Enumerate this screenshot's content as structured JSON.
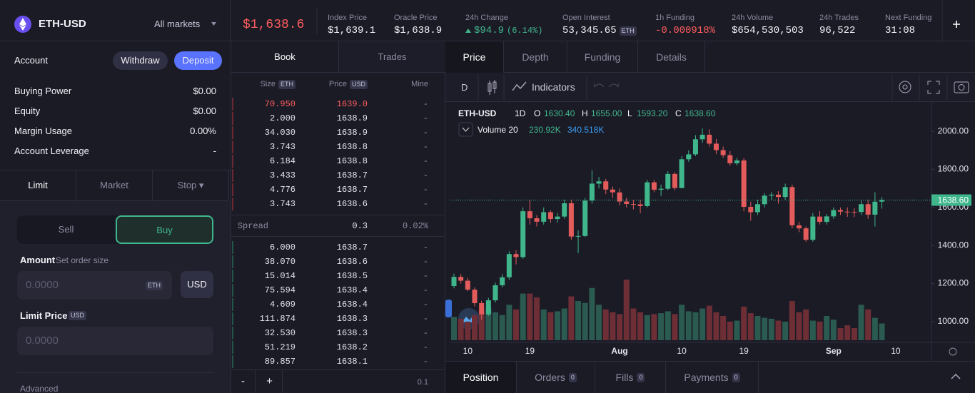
{
  "header": {
    "symbol": "ETH-USD",
    "markets": "All markets",
    "price": "$1,638.6",
    "stats": [
      {
        "label": "Index Price",
        "value": "$1,639.1"
      },
      {
        "label": "Oracle Price",
        "value": "$1,638.9"
      },
      {
        "label": "24h Change",
        "value": "$94.9",
        "extra": "(6.14%)",
        "color": "#3fb68b"
      },
      {
        "label": "Open Interest",
        "value": "53,345.65",
        "unit": "ETH"
      },
      {
        "label": "1h Funding",
        "value": "-0.000918%",
        "color": "#ff5d5d"
      },
      {
        "label": "24h Volume",
        "value": "$654,530,503"
      },
      {
        "label": "24h Trades",
        "value": "96,522"
      },
      {
        "label": "Next Funding",
        "value": "31:08"
      }
    ]
  },
  "account": {
    "title": "Account",
    "withdraw": "Withdraw",
    "deposit": "Deposit",
    "rows": [
      {
        "label": "Buying Power",
        "value": "$0.00"
      },
      {
        "label": "Equity",
        "value": "$0.00"
      },
      {
        "label": "Margin Usage",
        "value": "0.00%"
      },
      {
        "label": "Account Leverage",
        "value": "-"
      }
    ]
  },
  "order_form": {
    "tabs": [
      "Limit",
      "Market",
      "Stop"
    ],
    "sides": [
      "Sell",
      "Buy"
    ],
    "amount_label": "Amount",
    "amount_hint": "Set order size",
    "amount_placeholder": "0.0000",
    "amount_unit": "ETH",
    "currency_toggle": "USD",
    "limit_label": "Limit Price",
    "limit_unit": "USD",
    "limit_placeholder": "0.0000",
    "advanced": "Advanced"
  },
  "orderbook": {
    "tabs": [
      "Book",
      "Trades"
    ],
    "columns": [
      {
        "label": "Size",
        "unit": "ETH"
      },
      {
        "label": "Price",
        "unit": "USD"
      },
      {
        "label": "Mine"
      }
    ],
    "asks": [
      [
        "70.950",
        "1639.0",
        "-"
      ],
      [
        "2.000",
        "1638.9",
        "-"
      ],
      [
        "34.030",
        "1638.9",
        "-"
      ],
      [
        "3.743",
        "1638.8",
        "-"
      ],
      [
        "6.184",
        "1638.8",
        "-"
      ],
      [
        "3.433",
        "1638.7",
        "-"
      ],
      [
        "4.776",
        "1638.7",
        "-"
      ],
      [
        "3.743",
        "1638.6",
        "-"
      ]
    ],
    "spread": [
      "Spread",
      "0.3",
      "0.02%"
    ],
    "bids": [
      [
        "6.000",
        "1638.7",
        "-"
      ],
      [
        "38.070",
        "1638.6",
        "-"
      ],
      [
        "15.014",
        "1638.5",
        "-"
      ],
      [
        "75.594",
        "1638.4",
        "-"
      ],
      [
        "4.609",
        "1638.4",
        "-"
      ],
      [
        "111.874",
        "1638.3",
        "-"
      ],
      [
        "32.530",
        "1638.3",
        "-"
      ],
      [
        "51.219",
        "1638.2",
        "-"
      ],
      [
        "89.857",
        "1638.1",
        "-"
      ]
    ],
    "footer": [
      "-",
      "+",
      "0.1"
    ]
  },
  "chart_tabs": [
    "Price",
    "Depth",
    "Funding",
    "Details"
  ],
  "toolbar": {
    "interval": "D",
    "indicators": "Indicators"
  },
  "chart_data": {
    "type": "candlestick",
    "symbol": "ETH-USD",
    "interval": "1D",
    "ohlc_labels": [
      {
        "key": "O",
        "value": "1630.40"
      },
      {
        "key": "H",
        "value": "1655.00"
      },
      {
        "key": "L",
        "value": "1593.20"
      },
      {
        "key": "C",
        "value": "1638.60"
      }
    ],
    "volume_legend": {
      "label": "Volume 20",
      "values": [
        "230.92K",
        "340.518K"
      ]
    },
    "categories": [
      null,
      null,
      "10",
      null,
      null,
      null,
      null,
      null,
      null,
      null,
      null,
      "19",
      null,
      null,
      null,
      null,
      null,
      null,
      null,
      null,
      null,
      null,
      null,
      null,
      "Aug",
      null,
      null,
      null,
      null,
      null,
      null,
      null,
      null,
      "10",
      null,
      null,
      null,
      null,
      null,
      null,
      null,
      null,
      "19",
      null,
      null,
      null,
      null,
      null,
      null,
      null,
      null,
      null,
      null,
      null,
      null,
      "Sep",
      null,
      null,
      null,
      null,
      null,
      null,
      null,
      null,
      "10"
    ],
    "open": [
      1187,
      1235,
      1215,
      1168,
      1097,
      1038,
      1112,
      1191,
      1233,
      1355,
      1339,
      1580,
      1543,
      1525,
      1575,
      1539,
      1552,
      1622,
      1447,
      1450,
      1636,
      1725,
      1737,
      1694,
      1679,
      1631,
      1618,
      1616,
      1607,
      1732,
      1693,
      1698,
      1776,
      1702,
      1853,
      1879,
      1958,
      1982,
      1935,
      1901,
      1875,
      1832,
      1847,
      1603,
      1575,
      1617,
      1662,
      1667,
      1655,
      1707,
      1506,
      1490,
      1430,
      1552,
      1524,
      1553,
      1586,
      1578,
      1577,
      1576,
      1617,
      1562,
      1630.4,
      null,
      null
    ],
    "high": [
      1252,
      1250,
      1230,
      1180,
      1110,
      1125,
      1205,
      1250,
      1370,
      1375,
      1600,
      1640,
      1560,
      1600,
      1585,
      1570,
      1640,
      1640,
      1480,
      1650,
      1795,
      1760,
      1750,
      1710,
      1700,
      1650,
      1640,
      1640,
      1745,
      1745,
      1720,
      1790,
      1785,
      1870,
      1900,
      1980,
      2015,
      2010,
      1960,
      1920,
      1895,
      1860,
      1860,
      1630,
      1640,
      1675,
      1680,
      1685,
      1725,
      1720,
      1525,
      1500,
      1570,
      1580,
      1565,
      1600,
      1600,
      1600,
      1595,
      1640,
      1640,
      1680,
      1655,
      null,
      null
    ],
    "low": [
      1175,
      1200,
      1160,
      1080,
      1010,
      1030,
      1100,
      1180,
      1220,
      1300,
      1330,
      1510,
      1500,
      1510,
      1520,
      1520,
      1540,
      1430,
      1360,
      1445,
      1620,
      1700,
      1670,
      1650,
      1610,
      1600,
      1590,
      1570,
      1600,
      1680,
      1660,
      1690,
      1690,
      1700,
      1840,
      1870,
      1940,
      1920,
      1880,
      1860,
      1820,
      1820,
      1580,
      1530,
      1560,
      1600,
      1640,
      1620,
      1640,
      1490,
      1470,
      1420,
      1420,
      1510,
      1510,
      1540,
      1560,
      1550,
      1550,
      1560,
      1540,
      1500,
      1593.2,
      null,
      null
    ],
    "close": [
      1235,
      1215,
      1168,
      1097,
      1038,
      1112,
      1191,
      1233,
      1355,
      1339,
      1580,
      1543,
      1525,
      1575,
      1539,
      1552,
      1622,
      1447,
      1450,
      1636,
      1725,
      1737,
      1694,
      1679,
      1631,
      1618,
      1616,
      1607,
      1732,
      1693,
      1698,
      1776,
      1702,
      1853,
      1879,
      1958,
      1982,
      1935,
      1901,
      1875,
      1832,
      1847,
      1603,
      1575,
      1617,
      1662,
      1667,
      1655,
      1707,
      1506,
      1490,
      1430,
      1552,
      1524,
      1553,
      1586,
      1578,
      1577,
      1576,
      1617,
      1562,
      1630,
      1638.6,
      null,
      null
    ],
    "volume": [
      250000,
      230000,
      200000,
      270000,
      320000,
      350000,
      300000,
      270000,
      380000,
      330000,
      500000,
      500000,
      460000,
      330000,
      300000,
      310000,
      340000,
      470000,
      420000,
      400000,
      560000,
      380000,
      330000,
      300000,
      280000,
      650000,
      340000,
      300000,
      270000,
      280000,
      290000,
      310000,
      280000,
      380000,
      310000,
      300000,
      340000,
      370000,
      300000,
      260000,
      200000,
      210000,
      360000,
      290000,
      260000,
      240000,
      230000,
      210000,
      200000,
      420000,
      300000,
      330000,
      210000,
      200000,
      260000,
      220000,
      130000,
      160000,
      130000,
      380000,
      330000,
      240000,
      180000,
      null,
      null
    ],
    "ylim": [
      891,
      2154
    ],
    "yticks": [
      {
        "value": 1000,
        "label": "1000.00"
      },
      {
        "value": 1200,
        "label": "1200.00"
      },
      {
        "value": 1400,
        "label": "1400.00"
      },
      {
        "value": 1600,
        "label": "1600.00"
      },
      {
        "value": 1800,
        "label": "1800.00"
      },
      {
        "value": 2000,
        "label": "2000.00"
      }
    ],
    "last_price": {
      "value": 1638.6,
      "label": "1638.60"
    },
    "up_color": "#3fb68b",
    "down_color": "#e45b5b"
  },
  "bottom_tabs": [
    {
      "label": "Position"
    },
    {
      "label": "Orders",
      "count": "0"
    },
    {
      "label": "Fills",
      "count": "0"
    },
    {
      "label": "Payments",
      "count": "0"
    }
  ]
}
